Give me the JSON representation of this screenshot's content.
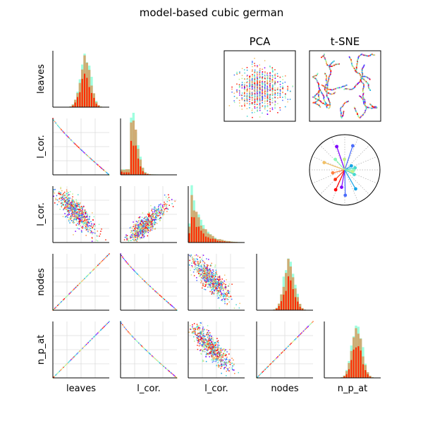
{
  "chart_data": {
    "type": "scatter-matrix",
    "title": "model-based cubic german",
    "variables": [
      "leaves",
      "l_cor.",
      "l_cor.",
      "nodes",
      "n_p_at"
    ],
    "panel_titles": {
      "pca": "PCA",
      "tsne": "t-SNE"
    },
    "palette": [
      "#8000ff",
      "#4a6cfb",
      "#16a4e6",
      "#48d8d0",
      "#8cf9b6",
      "#c4f08a",
      "#f2c066",
      "#ff8040",
      "#ff3010",
      "#ff0000"
    ],
    "histogram_colors": {
      "back": "#7fffd4",
      "mid": "#d2a86e",
      "front": "#ff2a00"
    },
    "grid": true,
    "pairs": {
      "leaves|l_cor.": {
        "relation": "negative",
        "shape": "curve"
      },
      "leaves|l_cor.2": {
        "relation": "negative",
        "shape": "cloud"
      },
      "leaves|nodes": {
        "relation": "positive",
        "shape": "line"
      },
      "leaves|n_p_at": {
        "relation": "positive",
        "shape": "line"
      },
      "l_cor.|l_cor.2": {
        "relation": "positive",
        "shape": "cloud"
      },
      "l_cor.|nodes": {
        "relation": "negative",
        "shape": "curve"
      },
      "l_cor.|n_p_at": {
        "relation": "negative",
        "shape": "curve"
      },
      "l_cor.2|nodes": {
        "relation": "negative",
        "shape": "cloud"
      },
      "l_cor.2|n_p_at": {
        "relation": "negative",
        "shape": "cloud"
      },
      "nodes|n_p_at": {
        "relation": "positive",
        "shape": "line"
      }
    },
    "histograms": {
      "leaves": {
        "shape": "peak-center"
      },
      "l_cor.": {
        "shape": "right-skew"
      },
      "l_cor.2": {
        "shape": "right-skew-strong"
      },
      "nodes": {
        "shape": "peak-center"
      },
      "n_p_at": {
        "shape": "peak-center"
      }
    }
  }
}
